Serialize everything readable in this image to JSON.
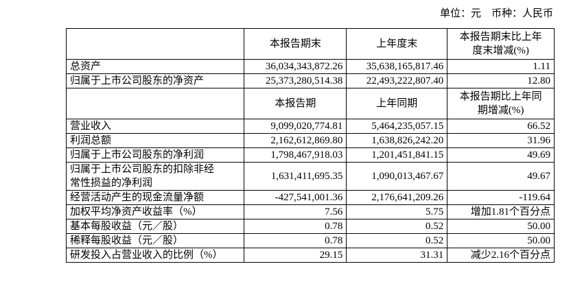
{
  "unit_line": "单位：元　币种：人民币",
  "table": {
    "rows": [
      [
        null,
        "本报告期末",
        "上年度末",
        "本报告期末比上年\n度末增减(%)"
      ],
      [
        "总资产",
        "36,034,343,872.26",
        "35,638,165,817.46",
        "1.11"
      ],
      [
        "归属于上市公司股东的净资产",
        "25,373,280,514.38",
        "22,493,222,807.40",
        "12.80"
      ],
      [
        null,
        "本报告期",
        "上年同期",
        "本报告期比上年同\n期增减(%)"
      ],
      [
        "营业收入",
        "9,099,020,774.81",
        "5,464,235,057.15",
        "66.52"
      ],
      [
        "利润总额",
        "2,162,612,869.80",
        "1,638,826,242.20",
        "31.96"
      ],
      [
        "归属于上市公司股东的净利润",
        "1,798,467,918.03",
        "1,201,451,841.15",
        "49.69"
      ],
      [
        "归属于上市公司股东的扣除非经\n常性损益的净利润",
        "1,631,411,695.35",
        "1,090,013,467.67",
        "49.67"
      ],
      [
        "经营活动产生的现金流量净额",
        "-427,541,001.36",
        "2,176,641,209.26",
        "-119.64"
      ],
      [
        "加权平均净资产收益率（%）",
        "7.56",
        "5.75",
        "增加1.81个百分点"
      ],
      [
        "基本每股收益（元／股）",
        "0.78",
        "0.52",
        "50.00"
      ],
      [
        "稀释每股收益（元／股）",
        "0.78",
        "0.52",
        "50.00"
      ],
      [
        "研发投入占营业收入的比例（%）",
        "29.15",
        "31.31",
        "减少2.16个百分点"
      ]
    ]
  }
}
